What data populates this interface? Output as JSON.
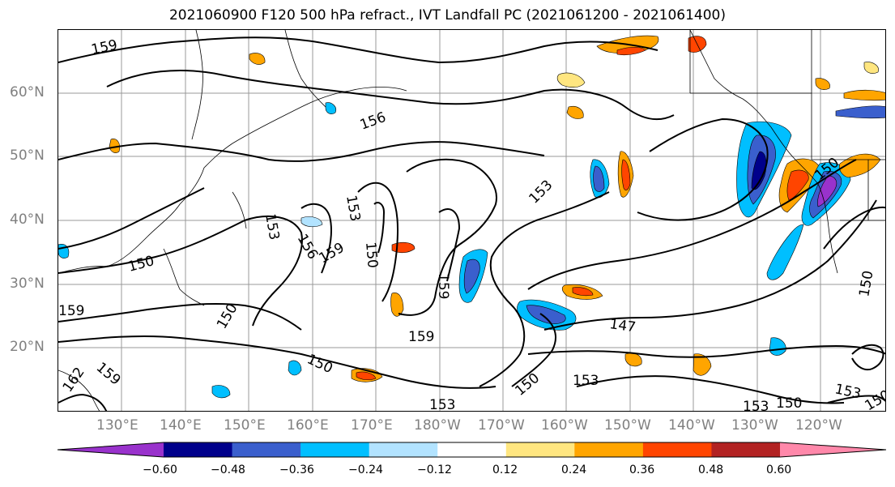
{
  "title": "2021060900 F120 500 hPa refract., IVT Landfall PC (2021061200 - 2021061400)",
  "lat_labels": [
    "60°N",
    "50°N",
    "40°N",
    "30°N",
    "20°N"
  ],
  "lon_labels": [
    "130°E",
    "140°E",
    "150°E",
    "160°E",
    "170°E",
    "180°W",
    "170°W",
    "160°W",
    "150°W",
    "140°W",
    "130°W",
    "120°W"
  ],
  "contour_labels": [
    "159",
    "156",
    "153",
    "156",
    "159",
    "150",
    "153",
    "150",
    "153",
    "159",
    "150",
    "159",
    "150",
    "159",
    "150",
    "162",
    "159",
    "147",
    "153",
    "150",
    "153",
    "153",
    "150",
    "153",
    "150",
    "150"
  ],
  "colorbar": {
    "ticks": [
      "−0.60",
      "−0.48",
      "−0.36",
      "−0.24",
      "−0.12",
      "0.12",
      "0.24",
      "0.36",
      "0.48",
      "0.60"
    ],
    "colors": [
      "#9932cc",
      "#00008b",
      "#3a5fcd",
      "#00bfff",
      "#b2e3ff",
      "#ffffff",
      "#ffe680",
      "#ffa500",
      "#ff4500",
      "#b22222",
      "#ff88aa"
    ]
  }
}
